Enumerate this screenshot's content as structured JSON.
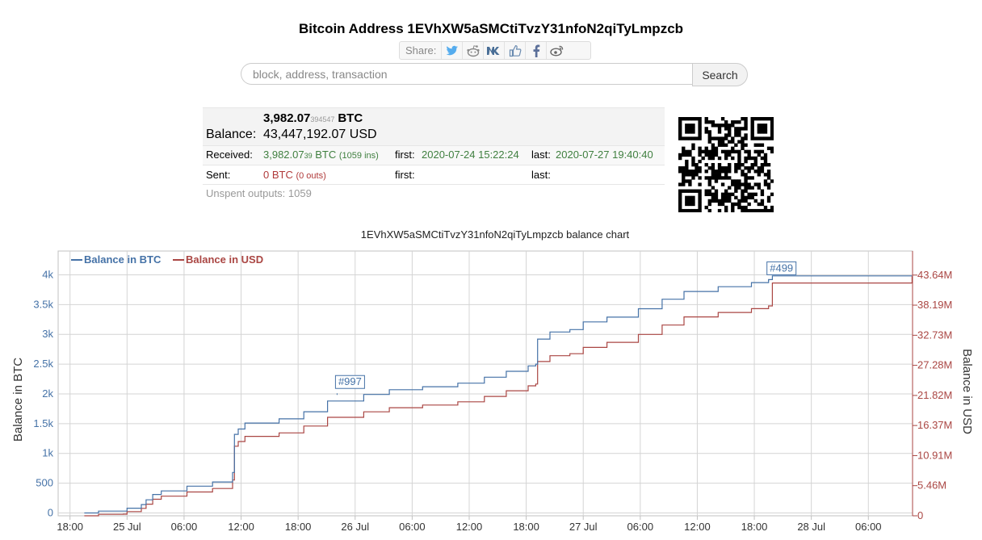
{
  "page": {
    "title": "Bitcoin Address 1EVhXW5aSMCtiTvzY31nfoN2qiTyLmpzcb"
  },
  "share": {
    "label": "Share:",
    "icons": [
      "twitter-icon",
      "reddit-icon",
      "vk-icon",
      "like-icon",
      "facebook-icon",
      "weibo-icon"
    ]
  },
  "search": {
    "placeholder": "block, address, transaction",
    "value": "",
    "button_label": "Search"
  },
  "balance": {
    "btc_main": "3,982.07",
    "btc_small": "394547",
    "btc_unit": "BTC",
    "label": "Balance:",
    "usd": "43,447,192.07 USD"
  },
  "received": {
    "label": "Received:",
    "main": "3,982.07",
    "small": "39",
    "unit": " BTC",
    "count": "(1059 ins)",
    "first_label": "first:",
    "first": "2020-07-24 15:22:24",
    "last_label": "last:",
    "last": "2020-07-27 19:40:40"
  },
  "sent": {
    "label": "Sent:",
    "amount": "0 BTC",
    "count": "(0 outs)",
    "first_label": "first:",
    "first": "",
    "last_label": "last:",
    "last": ""
  },
  "unspent": {
    "label": "Unspent outputs: 1059"
  },
  "colors": {
    "btc": "#4572a7",
    "usd": "#aa4643",
    "received": "#3f7f3f",
    "sent": "#b03a3a"
  },
  "chart_data": {
    "type": "line",
    "title": "1EVhXW5aSMCtiTvzY31nfoN2qiTyLmpzcb balance chart",
    "ylabel": "Balance in BTC",
    "y2label": "Balance in USD",
    "legend_position": "top-left",
    "grid": true,
    "x_tick_labels": [
      "18:00",
      "25 Jul",
      "06:00",
      "12:00",
      "18:00",
      "26 Jul",
      "06:00",
      "12:00",
      "18:00",
      "27 Jul",
      "06:00",
      "12:00",
      "18:00",
      "28 Jul",
      "06:00"
    ],
    "x_ticks_hours": [
      18,
      24,
      30,
      36,
      42,
      48,
      54,
      60,
      66,
      72,
      78,
      84,
      90,
      96,
      102
    ],
    "xlim_hours": [
      16.75,
      106.65
    ],
    "ylim": [
      -48,
      4400
    ],
    "y_ticks": [
      0,
      500,
      1000,
      1500,
      2000,
      2500,
      3000,
      3500,
      4000
    ],
    "y_tick_labels": [
      "0",
      "500",
      "1k",
      "1.5k",
      "2k",
      "2.5k",
      "3k",
      "3.5k",
      "4k"
    ],
    "y2lim": [
      0,
      48000000
    ],
    "y2_ticks": [
      0,
      5460000,
      10910000,
      16370000,
      21820000,
      27280000,
      32730000,
      38190000,
      43640000
    ],
    "y2_tick_labels": [
      "0",
      "5.46M",
      "10.91M",
      "16.37M",
      "21.82M",
      "27.28M",
      "32.73M",
      "38.19M",
      "43.64M"
    ],
    "annotations": [
      {
        "label": "#997",
        "x_hour": 46.1,
        "y": 2010
      },
      {
        "label": "#499",
        "x_hour": 91.5,
        "y": 3920
      }
    ],
    "series": [
      {
        "name": "Balance in BTC",
        "axis": "left",
        "points": [
          [
            19.5,
            0
          ],
          [
            20.7,
            0
          ],
          [
            21.0,
            30
          ],
          [
            23.6,
            30
          ],
          [
            24.0,
            80
          ],
          [
            25.5,
            140
          ],
          [
            26.0,
            220
          ],
          [
            26.7,
            310
          ],
          [
            27.6,
            370
          ],
          [
            30.3,
            450
          ],
          [
            33.0,
            520
          ],
          [
            35.1,
            680
          ],
          [
            35.3,
            1320
          ],
          [
            35.7,
            1410
          ],
          [
            36.4,
            1510
          ],
          [
            40.0,
            1580
          ],
          [
            42.6,
            1700
          ],
          [
            45.1,
            1880
          ],
          [
            48.9,
            1990
          ],
          [
            51.6,
            2070
          ],
          [
            55.1,
            2120
          ],
          [
            58.8,
            2180
          ],
          [
            61.6,
            2280
          ],
          [
            63.9,
            2380
          ],
          [
            66.2,
            2470
          ],
          [
            67.0,
            2500
          ],
          [
            67.2,
            2920
          ],
          [
            68.5,
            3040
          ],
          [
            70.6,
            3080
          ],
          [
            72.0,
            3210
          ],
          [
            74.5,
            3290
          ],
          [
            77.8,
            3430
          ],
          [
            80.3,
            3590
          ],
          [
            82.6,
            3720
          ],
          [
            86.2,
            3800
          ],
          [
            89.7,
            3870
          ],
          [
            91.5,
            3920
          ],
          [
            91.9,
            3982
          ],
          [
            106.6,
            3982
          ]
        ]
      },
      {
        "name": "Balance in USD",
        "axis": "right",
        "points": [
          [
            19.5,
            0
          ],
          [
            20.7,
            0
          ],
          [
            21.0,
            270000
          ],
          [
            23.6,
            290000
          ],
          [
            24.0,
            760000
          ],
          [
            25.5,
            1350000
          ],
          [
            26.0,
            2100000
          ],
          [
            26.7,
            3000000
          ],
          [
            27.6,
            3550000
          ],
          [
            30.3,
            4320000
          ],
          [
            33.0,
            4950000
          ],
          [
            35.1,
            6480000
          ],
          [
            35.3,
            12620000
          ],
          [
            35.7,
            13460000
          ],
          [
            36.4,
            14400000
          ],
          [
            40.0,
            15030000
          ],
          [
            42.6,
            16270000
          ],
          [
            45.1,
            17850000
          ],
          [
            48.9,
            18850000
          ],
          [
            51.6,
            19600000
          ],
          [
            55.1,
            20080000
          ],
          [
            58.8,
            20660000
          ],
          [
            61.6,
            21650000
          ],
          [
            63.9,
            22670000
          ],
          [
            66.2,
            23560000
          ],
          [
            67.0,
            23880000
          ],
          [
            67.2,
            27960000
          ],
          [
            68.5,
            29020000
          ],
          [
            70.6,
            29390000
          ],
          [
            72.0,
            30530000
          ],
          [
            74.5,
            31450000
          ],
          [
            77.8,
            32890000
          ],
          [
            80.3,
            34580000
          ],
          [
            82.6,
            36060000
          ],
          [
            86.2,
            36860000
          ],
          [
            89.7,
            37550000
          ],
          [
            91.5,
            38050000
          ],
          [
            91.9,
            42200000
          ],
          [
            106.6,
            43440000
          ]
        ]
      }
    ]
  }
}
